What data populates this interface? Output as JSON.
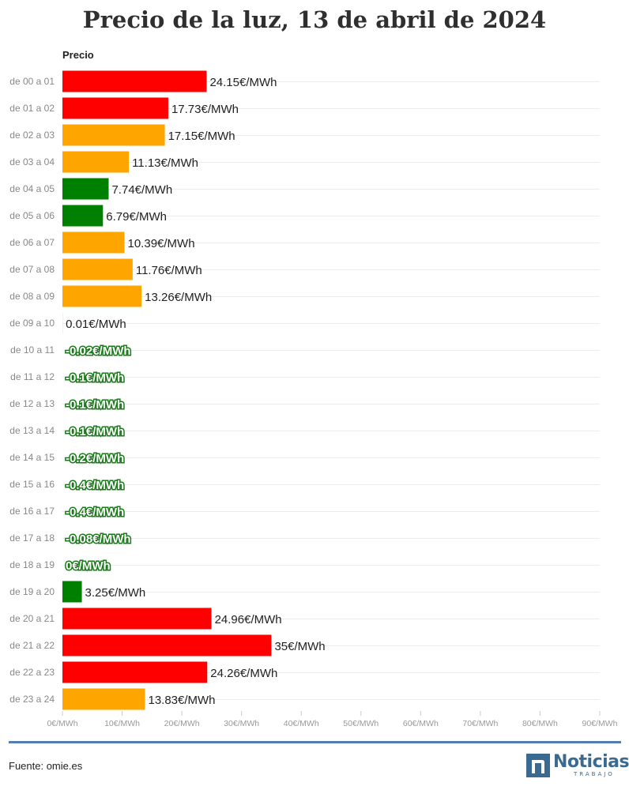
{
  "title": "Precio de la luz, 13 de abril de 2024",
  "column_header": "Precio",
  "source": "Fuente: omie.es",
  "logo": {
    "word": "Noticias",
    "sub": "TRABAJO",
    "icon": "n-logo-icon"
  },
  "colors": {
    "high": "#ff0000",
    "mid": "#ffa500",
    "low": "#008000",
    "negative_label_fill": "#ffffff",
    "negative_label_stroke": "#1a7a1a",
    "rule": "#4f7faa"
  },
  "chart_data": {
    "type": "bar",
    "orientation": "horizontal",
    "unit_suffix": "€/MWh",
    "xlim": [
      0,
      90
    ],
    "xticks": [
      "0€/MWh",
      "10€/MWh",
      "20€/MWh",
      "30€/MWh",
      "40€/MWh",
      "50€/MWh",
      "60€/MWh",
      "70€/MWh",
      "80€/MWh",
      "90€/MWh"
    ],
    "xtick_values": [
      0,
      10,
      20,
      30,
      40,
      50,
      60,
      70,
      80,
      90
    ],
    "categories": [
      "de 00 a 01",
      "de 01 a 02",
      "de 02 a 03",
      "de 03 a 04",
      "de 04 a 05",
      "de 05 a 06",
      "de 06 a 07",
      "de 07 a 08",
      "de 08 a 09",
      "de 09 a 10",
      "de 10 a 11",
      "de 11 a 12",
      "de 12 a 13",
      "de 13 a 14",
      "de 14 a 15",
      "de 15 a 16",
      "de 16 a 17",
      "de 17 a 18",
      "de 18 a 19",
      "de 19 a 20",
      "de 20 a 21",
      "de 21 a 22",
      "de 22 a 23",
      "de 23 a 24"
    ],
    "values": [
      24.15,
      17.73,
      17.15,
      11.13,
      7.74,
      6.79,
      10.39,
      11.76,
      13.26,
      0.01,
      -0.02,
      -0.1,
      -0.1,
      -0.1,
      -0.2,
      -0.4,
      -0.4,
      -0.08,
      0,
      3.25,
      24.96,
      35,
      24.26,
      13.83
    ],
    "labels": [
      "24.15€/MWh",
      "17.73€/MWh",
      "17.15€/MWh",
      "11.13€/MWh",
      "7.74€/MWh",
      "6.79€/MWh",
      "10.39€/MWh",
      "11.76€/MWh",
      "13.26€/MWh",
      "0.01€/MWh",
      "-0.02€/MWh",
      "-0.1€/MWh",
      "-0.1€/MWh",
      "-0.1€/MWh",
      "-0.2€/MWh",
      "-0.4€/MWh",
      "-0.4€/MWh",
      "-0.08€/MWh",
      "0€/MWh",
      "3.25€/MWh",
      "24.96€/MWh",
      "35€/MWh",
      "24.26€/MWh",
      "13.83€/MWh"
    ],
    "bar_colors": [
      "high",
      "high",
      "mid",
      "mid",
      "low",
      "low",
      "mid",
      "mid",
      "mid",
      "low",
      "low",
      "low",
      "low",
      "low",
      "low",
      "low",
      "low",
      "low",
      "low",
      "low",
      "high",
      "high",
      "high",
      "mid"
    ],
    "grid": true
  }
}
